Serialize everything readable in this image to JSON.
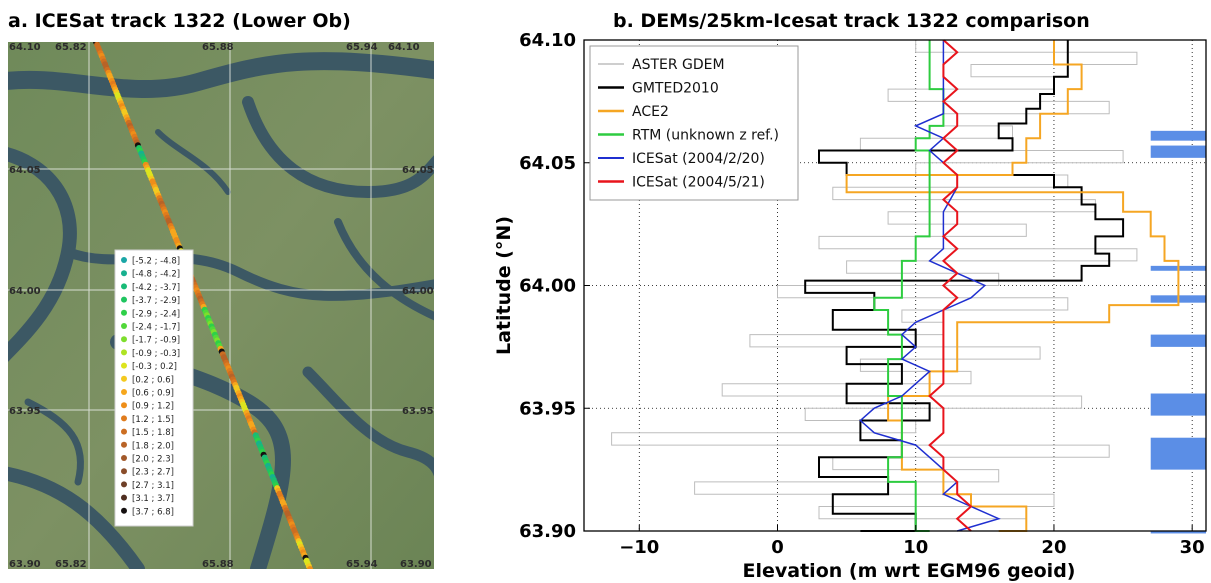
{
  "panel_a": {
    "title": "a. ICESat track 1322 (Lower Ob)",
    "corner_labels": {
      "top_left": "64.10",
      "top_right": "64.10",
      "bottom_left": "63.90",
      "bottom_right": "63.90"
    },
    "lat_labels": [
      "64.05",
      "64.00",
      "63.95"
    ],
    "lon_labels": [
      "65.82",
      "65.88",
      "65.94"
    ],
    "legend": [
      {
        "label": "[-5.2 ; -4.8]",
        "color": "#1aa6a6"
      },
      {
        "label": "[-4.8 ; -4.2]",
        "color": "#17b08f"
      },
      {
        "label": "[-4.2 ; -3.7]",
        "color": "#19bb77"
      },
      {
        "label": "[-3.7 ; -2.9]",
        "color": "#1fc560"
      },
      {
        "label": "[-2.9 ; -2.4]",
        "color": "#2ed049"
      },
      {
        "label": "[-2.4 ; -1.7]",
        "color": "#52d83a"
      },
      {
        "label": "[-1.7 ; -0.9]",
        "color": "#7ede2d"
      },
      {
        "label": "[-0.9 ; -0.3]",
        "color": "#aee323"
      },
      {
        "label": "[-0.3 ; 0.2]",
        "color": "#dde41e"
      },
      {
        "label": "[0.2 ; 0.6]",
        "color": "#f4c91f"
      },
      {
        "label": "[0.6 ; 0.9]",
        "color": "#f6a71d"
      },
      {
        "label": "[0.9 ; 1.2]",
        "color": "#ee8e1a"
      },
      {
        "label": "[1.2 ; 1.5]",
        "color": "#e07c1d"
      },
      {
        "label": "[1.5 ; 1.8]",
        "color": "#cc6e22"
      },
      {
        "label": "[1.8 ; 2.0]",
        "color": "#b86327"
      },
      {
        "label": "[2.0 ; 2.3]",
        "color": "#a2592a"
      },
      {
        "label": "[2.3 ; 2.7]",
        "color": "#8a4d2a"
      },
      {
        "label": "[2.7 ; 3.1]",
        "color": "#6e3f27"
      },
      {
        "label": "[3.1 ; 3.7]",
        "color": "#4f2e20"
      },
      {
        "label": "[3.7 ; 6.8]",
        "color": "#151010"
      }
    ]
  },
  "chart_data": {
    "type": "line",
    "title": "b. DEMs/25km-Icesat track 1322 comparison",
    "xlabel": "Elevation (m wrt EGM96 geoid)",
    "ylabel": "Latitude (°N)",
    "xlim": [
      -14,
      31
    ],
    "ylim": [
      63.9,
      64.1
    ],
    "x_ticks": [
      "−10",
      "0",
      "10",
      "20",
      "30"
    ],
    "x_tick_values": [
      -10,
      0,
      10,
      20,
      30
    ],
    "y_ticks": [
      "63.90",
      "63.95",
      "64.00",
      "64.05",
      "64.10"
    ],
    "y_tick_values": [
      63.9,
      63.95,
      64.0,
      64.05,
      64.1
    ],
    "grid": "dotted",
    "legend_position": "top-left",
    "series": [
      {
        "name": "ASTER GDEM",
        "color": "#bdbdbd",
        "width": 1,
        "lat": [
          63.9,
          63.905,
          63.91,
          63.915,
          63.92,
          63.925,
          63.93,
          63.935,
          63.94,
          63.945,
          63.95,
          63.955,
          63.96,
          63.965,
          63.97,
          63.975,
          63.98,
          63.985,
          63.99,
          63.995,
          64.0,
          64.005,
          64.01,
          64.015,
          64.02,
          64.025,
          64.03,
          64.035,
          64.04,
          64.045,
          64.05,
          64.055,
          64.06,
          64.065,
          64.07,
          64.075,
          64.08,
          64.085,
          64.09,
          64.095,
          64.1
        ],
        "elev": [
          8,
          18,
          3,
          20,
          -6,
          16,
          4,
          24,
          -12,
          10,
          2,
          22,
          -4,
          14,
          6,
          19,
          -2,
          12,
          9,
          21,
          0,
          16,
          5,
          26,
          3,
          18,
          8,
          23,
          4,
          21,
          10,
          25,
          6,
          17,
          12,
          24,
          8,
          20,
          14,
          26,
          10
        ]
      },
      {
        "name": "GMTED2010",
        "color": "#000000",
        "width": 2,
        "lat": [
          63.9,
          63.907,
          63.915,
          63.922,
          63.93,
          63.937,
          63.945,
          63.952,
          63.96,
          63.968,
          63.975,
          63.982,
          63.99,
          63.997,
          64.002,
          64.008,
          64.013,
          64.02,
          64.027,
          64.033,
          64.04,
          64.045,
          64.05,
          64.055,
          64.06,
          64.066,
          64.072,
          64.078,
          64.085,
          64.092,
          64.1
        ],
        "elev": [
          6,
          10,
          4,
          8,
          3,
          9,
          6,
          11,
          5,
          9,
          5,
          10,
          4,
          7,
          2,
          22,
          24,
          23,
          25,
          23,
          22,
          20,
          5,
          3,
          17,
          16,
          18,
          19,
          20,
          21,
          21
        ]
      },
      {
        "name": "ACE2",
        "color": "#f5a623",
        "width": 2,
        "lat": [
          63.9,
          63.91,
          63.915,
          63.925,
          63.935,
          63.945,
          63.955,
          63.965,
          63.975,
          63.985,
          63.992,
          63.997,
          64.002,
          64.01,
          64.02,
          64.03,
          64.038,
          64.045,
          64.05,
          64.06,
          64.07,
          64.08,
          64.09,
          64.1
        ],
        "elev": [
          16,
          18,
          14,
          12,
          9,
          9,
          8,
          11,
          13,
          13,
          24,
          29,
          29,
          29,
          28,
          27,
          25,
          5,
          17,
          18,
          19,
          21,
          22,
          20
        ]
      },
      {
        "name": "RTM (unknown z ref.)",
        "color": "#2ecc40",
        "width": 2,
        "lat": [
          63.9,
          63.91,
          63.92,
          63.93,
          63.94,
          63.95,
          63.955,
          63.96,
          63.97,
          63.98,
          63.985,
          63.99,
          63.995,
          64.0,
          64.01,
          64.02,
          64.03,
          64.04,
          64.05,
          64.055,
          64.06,
          64.065,
          64.07,
          64.08,
          64.09,
          64.1
        ],
        "elev": [
          11,
          10,
          10,
          8,
          9,
          9,
          9,
          8,
          8,
          9,
          8,
          8,
          7,
          9,
          9,
          10,
          11,
          11,
          11,
          11,
          10,
          11,
          12,
          12,
          11,
          11
        ]
      },
      {
        "name": "ICESat (2004/2/20)",
        "color": "#1f2fd0",
        "width": 1.5,
        "lat": [
          63.9,
          63.905,
          63.91,
          63.915,
          63.92,
          63.93,
          63.935,
          63.94,
          63.945,
          63.95,
          63.955,
          63.96,
          63.965,
          63.97,
          63.975,
          63.98,
          63.985,
          63.99,
          63.995,
          64.0,
          64.005,
          64.01,
          64.015,
          64.02,
          64.03,
          64.04,
          64.045,
          64.05,
          64.055,
          64.06,
          64.065,
          64.07,
          64.08,
          64.09,
          64.1
        ],
        "elev": [
          13,
          16,
          14,
          12,
          13,
          11,
          10,
          7,
          6,
          7,
          9,
          10,
          11,
          9,
          10,
          9,
          10,
          12,
          14,
          15,
          13,
          11,
          12,
          12,
          12,
          13,
          13,
          12,
          11,
          12,
          10,
          12,
          12,
          12,
          12
        ]
      },
      {
        "name": "ICESat (2004/5/21)",
        "color": "#e8141c",
        "width": 2,
        "lat": [
          63.9,
          63.905,
          63.91,
          63.915,
          63.92,
          63.925,
          63.93,
          63.935,
          63.94,
          63.945,
          63.95,
          63.955,
          63.96,
          63.965,
          63.97,
          63.975,
          63.98,
          63.985,
          63.99,
          63.995,
          64.0,
          64.005,
          64.01,
          64.015,
          64.02,
          64.025,
          64.03,
          64.035,
          64.04,
          64.045,
          64.05,
          64.055,
          64.06,
          64.065,
          64.07,
          64.075,
          64.08,
          64.085,
          64.09,
          64.095,
          64.1
        ],
        "elev": [
          14,
          13,
          14,
          13,
          13,
          12,
          12,
          11,
          12,
          12,
          12,
          11,
          12,
          12,
          12,
          12,
          12,
          12,
          12,
          13,
          12,
          13,
          12,
          13,
          12,
          13,
          13,
          12,
          13,
          13,
          12,
          13,
          12,
          13,
          13,
          12,
          13,
          12,
          12,
          13,
          12
        ]
      }
    ],
    "bars": {
      "color": "#5b8ee6",
      "x_from": 27,
      "x_to": 31,
      "segments": [
        [
          63.925,
          63.938
        ],
        [
          63.947,
          63.956
        ],
        [
          63.975,
          63.98
        ],
        [
          63.993,
          63.996
        ],
        [
          64.006,
          64.008
        ],
        [
          64.052,
          64.057
        ],
        [
          64.059,
          64.063
        ],
        [
          63.899,
          63.9
        ]
      ]
    }
  }
}
